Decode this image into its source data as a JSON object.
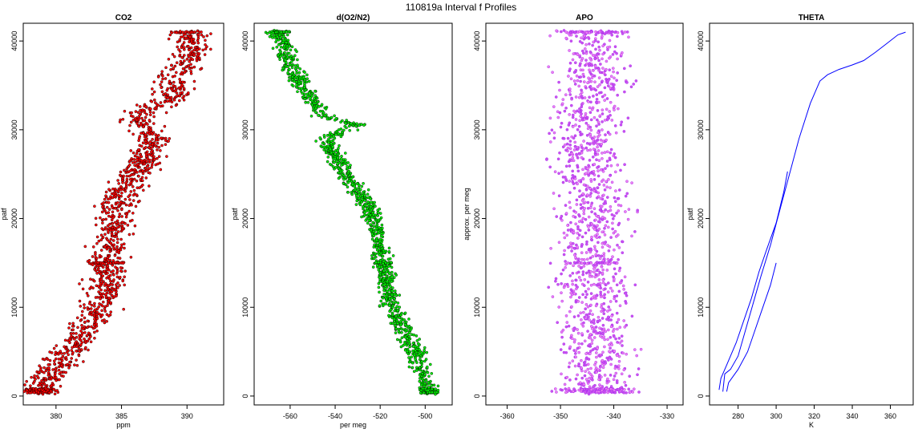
{
  "figure_title": "110819a   Interval f Profiles",
  "colors": {
    "co2": "#ff0000",
    "o2n2": "#00ee00",
    "apo": "#ee82ee",
    "theta": "#0000ff",
    "edge": "#000000"
  },
  "chart_data": [
    {
      "type": "scatter",
      "title": "CO2",
      "xlabel": "ppm",
      "ylabel": "patf",
      "xlim": [
        377.5,
        392.8
      ],
      "ylim": [
        -1000,
        42000
      ],
      "xticks": [
        "380",
        "385",
        "390"
      ],
      "yticks": [
        "0",
        "10000",
        "20000",
        "30000",
        "40000"
      ],
      "xtick_values": [
        380,
        385,
        390
      ],
      "ytick_values": [
        0,
        10000,
        20000,
        30000,
        40000
      ],
      "profile": [
        [
          378.6,
          500
        ],
        [
          379.5,
          2000
        ],
        [
          380.5,
          4000
        ],
        [
          381.5,
          6000
        ],
        [
          382.8,
          8500
        ],
        [
          383.3,
          10000
        ],
        [
          383.6,
          12000
        ],
        [
          383.8,
          14000
        ],
        [
          383.9,
          15000
        ],
        [
          384.2,
          17000
        ],
        [
          384.6,
          19000
        ],
        [
          384.5,
          21000
        ],
        [
          385.0,
          23000
        ],
        [
          386.0,
          25000
        ],
        [
          387.0,
          27000
        ],
        [
          387.6,
          29000
        ],
        [
          386.0,
          31000
        ],
        [
          387.5,
          32500
        ],
        [
          389.0,
          34000
        ],
        [
          389.0,
          36000
        ],
        [
          390.0,
          37500
        ],
        [
          390.5,
          39000
        ],
        [
          390.0,
          41000
        ]
      ],
      "spread": 1.0,
      "band_levels": [
        600,
        15000,
        41000
      ]
    },
    {
      "type": "scatter",
      "title": "d(O2/N2)",
      "xlabel": "per meg",
      "ylabel": "patf",
      "xlim": [
        -576,
        -488
      ],
      "ylim": [
        -1000,
        42000
      ],
      "xticks": [
        "-560",
        "-540",
        "-520",
        "-500"
      ],
      "yticks": [
        "0",
        "10000",
        "20000",
        "30000",
        "40000"
      ],
      "xtick_values": [
        -560,
        -540,
        -520,
        -500
      ],
      "ytick_values": [
        0,
        10000,
        20000,
        30000,
        40000
      ],
      "profile": [
        [
          -498,
          500
        ],
        [
          -500,
          2000
        ],
        [
          -503,
          4000
        ],
        [
          -507,
          6000
        ],
        [
          -511,
          8000
        ],
        [
          -515,
          10000
        ],
        [
          -517,
          12000
        ],
        [
          -518,
          14000
        ],
        [
          -519,
          15000
        ],
        [
          -520,
          17000
        ],
        [
          -522,
          19000
        ],
        [
          -524,
          21000
        ],
        [
          -530,
          23000
        ],
        [
          -535,
          25000
        ],
        [
          -540,
          27000
        ],
        [
          -545,
          29000
        ],
        [
          -530,
          30500
        ],
        [
          -545,
          31500
        ],
        [
          -550,
          33000
        ],
        [
          -555,
          35000
        ],
        [
          -560,
          37000
        ],
        [
          -562,
          39000
        ],
        [
          -565,
          41000
        ]
      ],
      "spread": 3.0,
      "band_levels": [
        600,
        15000,
        41000
      ]
    },
    {
      "type": "scatter",
      "title": "APO",
      "xlabel": "",
      "ylabel": "approx. per meg",
      "xlim": [
        -364,
        -327
      ],
      "ylim": [
        -1000,
        42000
      ],
      "xticks": [
        "-360",
        "-350",
        "-340",
        "-330"
      ],
      "yticks": [
        "0",
        "10000",
        "20000",
        "30000",
        "40000"
      ],
      "xtick_values": [
        -360,
        -350,
        -340,
        -330
      ],
      "ytick_values": [
        0,
        10000,
        20000,
        30000,
        40000
      ],
      "profile": [
        [
          -343,
          500
        ],
        [
          -343,
          5000
        ],
        [
          -344,
          10000
        ],
        [
          -344,
          15000
        ],
        [
          -344,
          20000
        ],
        [
          -345,
          25000
        ],
        [
          -345,
          30000
        ],
        [
          -344,
          35000
        ],
        [
          -344,
          41000
        ]
      ],
      "spread": 4.5,
      "band_levels": [
        600,
        15000,
        41000
      ]
    },
    {
      "type": "line",
      "title": "THETA",
      "xlabel": "K",
      "ylabel": "patf",
      "xlim": [
        265,
        372
      ],
      "ylim": [
        -1000,
        42000
      ],
      "xticks": [
        "280",
        "300",
        "320",
        "340",
        "360"
      ],
      "yticks": [
        "0",
        "10000",
        "20000",
        "30000",
        "40000"
      ],
      "xtick_values": [
        280,
        300,
        320,
        340,
        360
      ],
      "ytick_values": [
        0,
        10000,
        20000,
        30000,
        40000
      ],
      "series": [
        {
          "values": [
            [
              272,
              500
            ],
            [
              273,
              2500
            ],
            [
              276,
              3000
            ],
            [
              280,
              4500
            ],
            [
              284,
              7500
            ],
            [
              288,
              10500
            ],
            [
              292,
              13500
            ],
            [
              297,
              17000
            ],
            [
              302,
              21000
            ],
            [
              307,
              25000
            ],
            [
              312,
              29000
            ],
            [
              318,
              33000
            ],
            [
              323,
              35500
            ],
            [
              327,
              36200
            ],
            [
              333,
              36800
            ],
            [
              340,
              37300
            ],
            [
              346,
              37800
            ],
            [
              352,
              38700
            ],
            [
              358,
              39700
            ],
            [
              364,
              40700
            ],
            [
              368,
              41000
            ]
          ]
        },
        {
          "values": [
            [
              270,
              700
            ],
            [
              271,
              2000
            ],
            [
              274,
              3500
            ],
            [
              279,
              6000
            ],
            [
              283,
              8500
            ],
            [
              287,
              11000
            ],
            [
              291,
              14000
            ],
            [
              295,
              16500
            ],
            [
              300,
              19500
            ],
            [
              304,
              23000
            ],
            [
              306,
              25300
            ]
          ]
        },
        {
          "values": [
            [
              274,
              500
            ],
            [
              275,
              1500
            ],
            [
              280,
              3000
            ],
            [
              285,
              5000
            ],
            [
              289,
              7500
            ],
            [
              293,
              10000
            ],
            [
              297,
              12500
            ],
            [
              300,
              15000
            ]
          ]
        }
      ]
    }
  ]
}
